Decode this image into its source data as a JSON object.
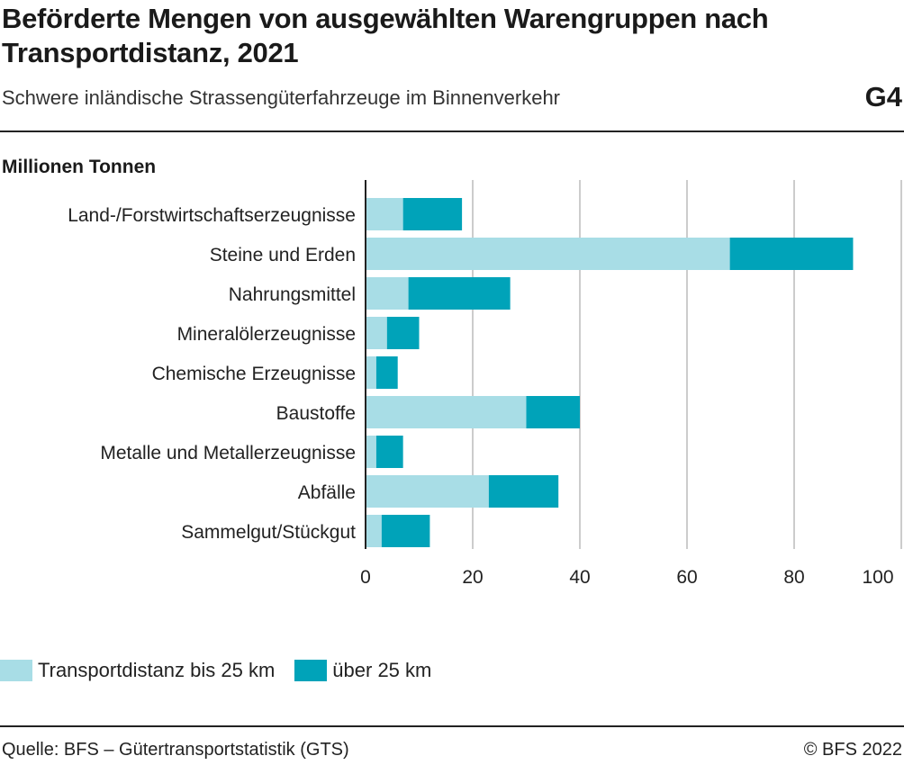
{
  "header": {
    "title": "Beförderte Mengen von ausgewählten Warengruppen nach Transportdistanz, 2021",
    "subtitle": "Schwere inländische Strassengüterfahrzeuge im Binnenverkehr",
    "code": "G4"
  },
  "unit_label": "Millionen Tonnen",
  "footer": {
    "source": "Quelle: BFS – Gütertransportstatistik (GTS)",
    "copyright": "© BFS 2022"
  },
  "colors": {
    "short": "#a8dde6",
    "long": "#00a3b9",
    "grid": "#cccccc",
    "axis": "#222222"
  },
  "chart_data": {
    "type": "bar",
    "orientation": "horizontal",
    "stacked": true,
    "categories": [
      "Land-/Forstwirtschaftserzeugnisse",
      "Steine und Erden",
      "Nahrungsmittel",
      "Mineralölerzeugnisse",
      "Chemische Erzeugnisse",
      "Baustoffe",
      "Metalle und Metallerzeugnisse",
      "Abfälle",
      "Sammelgut/Stückgut"
    ],
    "series": [
      {
        "name": "Transportdistanz bis 25 km",
        "color": "#a8dde6",
        "values": [
          7,
          68,
          8,
          4,
          2,
          30,
          2,
          23,
          3
        ]
      },
      {
        "name": "über 25 km",
        "color": "#00a3b9",
        "values": [
          11,
          23,
          19,
          6,
          4,
          10,
          5,
          13,
          9
        ]
      }
    ],
    "xlim": [
      0,
      100
    ],
    "xticks": [
      0,
      20,
      40,
      60,
      80,
      100
    ],
    "grid": true,
    "legend": "bottom-left"
  }
}
